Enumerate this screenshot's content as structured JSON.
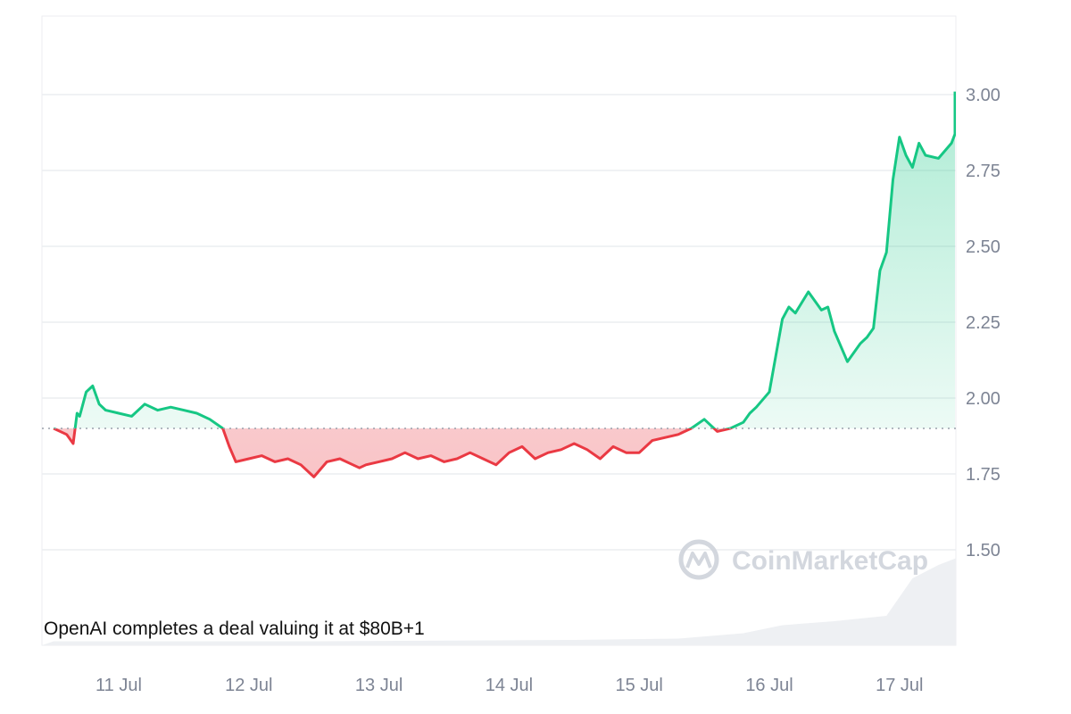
{
  "chart_data": {
    "type": "area",
    "x_ticks": [
      "11 Jul",
      "12 Jul",
      "13 Jul",
      "14 Jul",
      "15 Jul",
      "16 Jul",
      "17 Jul"
    ],
    "y_ticks": [
      "1.50",
      "1.75",
      "2.00",
      "2.25",
      "2.50",
      "2.75",
      "3.00"
    ],
    "ylim": [
      1.24,
      3.26
    ],
    "xlim": [
      0,
      7
    ],
    "baseline": 1.9,
    "grid": true,
    "y_axis_position": "right",
    "colors": {
      "up": "#16c784",
      "down": "#ea3943",
      "up_fill": "#16c784",
      "down_fill": "#ea3943",
      "volume": "#eef0f3"
    },
    "series": [
      {
        "x": [
          0.0,
          0.1,
          0.15,
          0.18,
          0.2,
          0.25,
          0.3,
          0.35,
          0.4,
          0.5,
          0.6,
          0.7,
          0.8,
          0.9,
          1.0,
          1.1,
          1.2,
          1.3,
          1.35,
          1.4,
          1.5,
          1.6,
          1.7,
          1.8,
          1.9,
          2.0,
          2.1,
          2.2,
          2.3,
          2.35,
          2.4,
          2.5,
          2.6,
          2.7,
          2.8,
          2.9,
          3.0,
          3.1,
          3.2,
          3.3,
          3.4,
          3.5,
          3.6,
          3.7,
          3.8,
          3.9,
          4.0,
          4.1,
          4.2,
          4.3,
          4.4,
          4.5,
          4.6,
          4.7,
          4.8,
          4.85,
          4.9,
          5.0,
          5.1,
          5.2,
          5.3,
          5.35,
          5.4,
          5.5,
          5.6,
          5.65,
          5.7,
          5.8,
          5.9,
          5.95,
          6.0,
          6.1,
          6.2,
          6.25,
          6.3,
          6.35,
          6.4,
          6.45,
          6.5,
          6.55,
          6.6,
          6.65,
          6.7,
          6.8,
          6.9,
          7.0,
          7.05,
          7.1
        ],
        "y": [
          1.9,
          1.88,
          1.85,
          1.95,
          1.94,
          2.02,
          2.04,
          1.98,
          1.96,
          1.95,
          1.94,
          1.98,
          1.96,
          1.97,
          1.96,
          1.95,
          1.93,
          1.9,
          1.84,
          1.79,
          1.8,
          1.81,
          1.79,
          1.8,
          1.78,
          1.74,
          1.79,
          1.8,
          1.78,
          1.77,
          1.78,
          1.79,
          1.8,
          1.82,
          1.8,
          1.81,
          1.79,
          1.8,
          1.82,
          1.8,
          1.78,
          1.82,
          1.84,
          1.8,
          1.82,
          1.83,
          1.85,
          1.83,
          1.8,
          1.84,
          1.82,
          1.82,
          1.86,
          1.87,
          1.88,
          1.89,
          1.9,
          1.93,
          1.89,
          1.9,
          1.92,
          1.95,
          1.97,
          2.02,
          2.26,
          2.3,
          2.28,
          2.35,
          2.29,
          2.3,
          2.22,
          2.12,
          2.18,
          2.2,
          2.23,
          2.42,
          2.48,
          2.72,
          2.86,
          2.8,
          2.76,
          2.84,
          2.8,
          2.79,
          2.84,
          2.87,
          2.91,
          3.01
        ]
      }
    ],
    "volume": {
      "x": [
        0.0,
        1.0,
        2.0,
        3.0,
        4.0,
        4.8,
        5.3,
        5.6,
        6.0,
        6.4,
        6.6,
        6.8,
        7.0,
        7.1
      ],
      "y": [
        0.03,
        0.03,
        0.03,
        0.035,
        0.04,
        0.05,
        0.09,
        0.15,
        0.18,
        0.22,
        0.5,
        0.6,
        0.65,
        0.7
      ]
    },
    "annotations": [
      "OpenAI completes a deal valuing it at $80B+1"
    ],
    "watermark": "CoinMarketCap"
  }
}
